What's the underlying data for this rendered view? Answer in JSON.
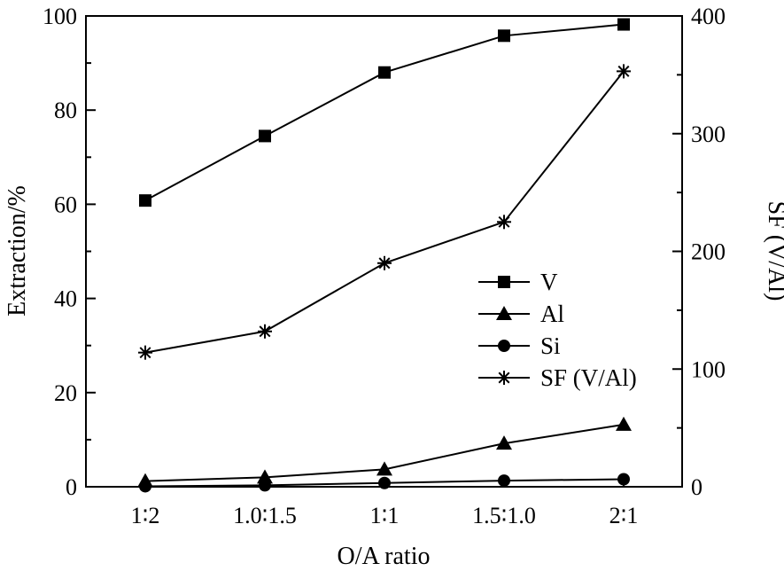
{
  "chart_data": {
    "type": "line",
    "xlabel": "O/A ratio",
    "ylabel_left": "Extraction/%",
    "ylabel_right": "SF (V/Al)",
    "categories": [
      "1∶2",
      "1.0∶1.5",
      "1∶1",
      "1.5∶1.0",
      "2∶1"
    ],
    "ylim_left": [
      0,
      100
    ],
    "ylim_right": [
      0,
      400
    ],
    "yticks_left": [
      "0",
      "20",
      "40",
      "60",
      "80",
      "100"
    ],
    "yticks_right": [
      "0",
      "100",
      "200",
      "300",
      "400"
    ],
    "grid": false,
    "legend_position": "center-right",
    "series": [
      {
        "name": "V",
        "marker": "square",
        "axis": "left",
        "values": [
          60.8,
          74.5,
          88.0,
          95.8,
          98.2
        ]
      },
      {
        "name": "Al",
        "marker": "triangle",
        "axis": "left",
        "values": [
          1.2,
          2.0,
          3.7,
          9.2,
          13.2
        ]
      },
      {
        "name": "Si",
        "marker": "circle",
        "axis": "left",
        "values": [
          0.1,
          0.3,
          0.8,
          1.3,
          1.6
        ]
      },
      {
        "name": "SF (V/Al)",
        "marker": "asterisk",
        "axis": "right",
        "values": [
          114,
          132,
          190,
          225,
          353
        ]
      }
    ]
  }
}
